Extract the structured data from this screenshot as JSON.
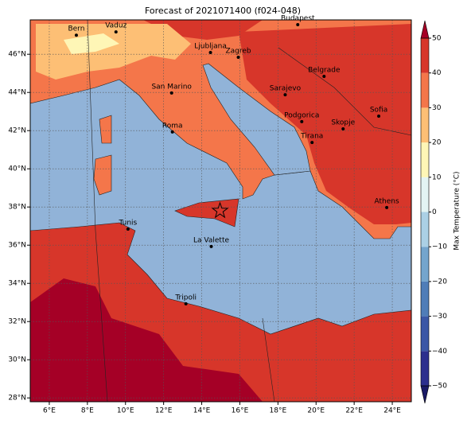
{
  "title": "Forecast of 2021071400 (f024-048)",
  "map": {
    "xlim": [
      5,
      25
    ],
    "ylim": [
      27.8,
      47.8
    ],
    "xticks": [
      {
        "value": 6,
        "label": "6°E"
      },
      {
        "value": 8,
        "label": "8°E"
      },
      {
        "value": 10,
        "label": "10°E"
      },
      {
        "value": 12,
        "label": "12°E"
      },
      {
        "value": 14,
        "label": "14°E"
      },
      {
        "value": 16,
        "label": "16°E"
      },
      {
        "value": 18,
        "label": "18°E"
      },
      {
        "value": 20,
        "label": "20°E"
      },
      {
        "value": 22,
        "label": "22°E"
      },
      {
        "value": 24,
        "label": "24°E"
      }
    ],
    "yticks": [
      {
        "value": 28,
        "label": "28°N"
      },
      {
        "value": 30,
        "label": "30°N"
      },
      {
        "value": 32,
        "label": "32°N"
      },
      {
        "value": 34,
        "label": "34°N"
      },
      {
        "value": 36,
        "label": "36°N"
      },
      {
        "value": 38,
        "label": "38°N"
      },
      {
        "value": 40,
        "label": "40°N"
      },
      {
        "value": 42,
        "label": "42°N"
      },
      {
        "value": 44,
        "label": "44°N"
      },
      {
        "value": 46,
        "label": "46°N"
      }
    ],
    "grid": true
  },
  "cities": [
    {
      "name": "Bern",
      "lon": 7.42,
      "lat": 47.0
    },
    {
      "name": "Vaduz",
      "lon": 9.5,
      "lat": 47.17
    },
    {
      "name": "Budapest",
      "lon": 19.04,
      "lat": 47.55
    },
    {
      "name": "Ljubljana",
      "lon": 14.46,
      "lat": 46.09
    },
    {
      "name": "Zagreb",
      "lon": 15.92,
      "lat": 45.84
    },
    {
      "name": "Belgrade",
      "lon": 20.42,
      "lat": 44.84
    },
    {
      "name": "San Marino",
      "lon": 12.42,
      "lat": 43.97
    },
    {
      "name": "Sarajevo",
      "lon": 18.38,
      "lat": 43.88
    },
    {
      "name": "Sofia",
      "lon": 23.29,
      "lat": 42.76
    },
    {
      "name": "Podgorica",
      "lon": 19.25,
      "lat": 42.47
    },
    {
      "name": "Skopje",
      "lon": 21.42,
      "lat": 42.09
    },
    {
      "name": "Roma",
      "lon": 12.46,
      "lat": 41.93
    },
    {
      "name": "Tirana",
      "lon": 19.79,
      "lat": 41.38
    },
    {
      "name": "Athens",
      "lon": 23.71,
      "lat": 37.97
    },
    {
      "name": "Tunis",
      "lon": 10.13,
      "lat": 36.84
    },
    {
      "name": "La Valette",
      "lon": 14.5,
      "lat": 35.93
    },
    {
      "name": "Tripoli",
      "lon": 13.17,
      "lat": 32.93
    }
  ],
  "marker": {
    "lon": 14.96,
    "lat": 37.8
  },
  "colorbar": {
    "label": "Max Temperature (°C)",
    "levels": [
      -50,
      -40,
      -30,
      -20,
      -10,
      0,
      10,
      20,
      30,
      40,
      50
    ],
    "colors": [
      "#2c2f8e",
      "#3a57a6",
      "#4f7db8",
      "#74a5cd",
      "#abd0e5",
      "#e3f4f4",
      "#fef6b6",
      "#fdbf75",
      "#f4764a",
      "#d7362a"
    ],
    "under_color": "#1a1a66",
    "over_color": "#a50026",
    "ticks": [
      {
        "value": -50,
        "label": "−50"
      },
      {
        "value": -40,
        "label": "−40"
      },
      {
        "value": -30,
        "label": "−30"
      },
      {
        "value": -20,
        "label": "−20"
      },
      {
        "value": -10,
        "label": "−10"
      },
      0,
      10,
      20,
      30,
      40,
      50
    ]
  }
}
